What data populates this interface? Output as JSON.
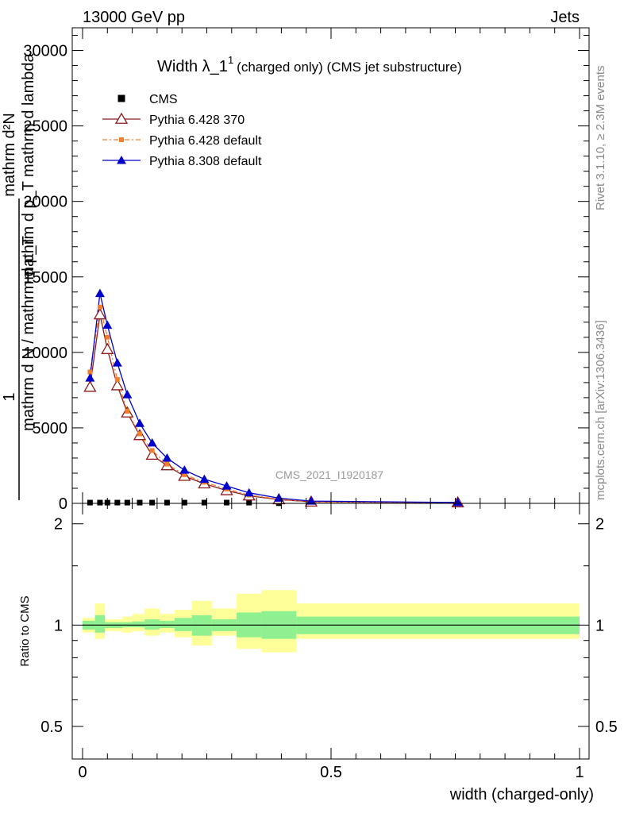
{
  "header": {
    "left": "13000 GeV pp",
    "right": "Jets"
  },
  "side_labels": {
    "rivet": "Rivet 3.1.10, ≥ 2.3M events",
    "mcplots": "mcplots.cern.ch [arXiv:1306.3436]"
  },
  "watermark": "CMS_2021_I1920187",
  "chart_data": [
    {
      "type": "line",
      "title_main": "Width λ_1",
      "title_sup": "1",
      "title_sub": "(charged only) (CMS jet substructure)",
      "ylabel_numerator": "1",
      "ylabel_denominator": "mathrm d N / mathrm d p_T",
      "ylabel_numerator2": "mathrm d²N",
      "ylabel_denominator2": "mathrm d p_T mathrm d lambda",
      "xlim": [
        0,
        1
      ],
      "ylim": [
        0,
        31500
      ],
      "yticks": [
        0,
        5000,
        10000,
        15000,
        20000,
        25000,
        30000
      ],
      "ytick_labels": [
        "0",
        "5000",
        "10000",
        "15000",
        "20000",
        "25000",
        "30000"
      ],
      "legend_position": "top-left",
      "series": [
        {
          "name": "CMS",
          "color": "#000000",
          "marker": "square",
          "x": [
            0.015,
            0.035,
            0.05,
            0.07,
            0.09,
            0.115,
            0.14,
            0.17,
            0.205,
            0.245,
            0.29,
            0.335,
            0.395,
            0.46,
            0.755
          ],
          "y": [
            50,
            50,
            50,
            50,
            50,
            50,
            50,
            50,
            50,
            50,
            50,
            50,
            10,
            10,
            10
          ]
        },
        {
          "name": "Pythia 6.428 370",
          "color": "#8b1a1a",
          "marker": "open-triangle",
          "x": [
            0.015,
            0.035,
            0.05,
            0.07,
            0.09,
            0.115,
            0.14,
            0.17,
            0.205,
            0.245,
            0.29,
            0.335,
            0.395,
            0.46,
            0.755
          ],
          "y": [
            7700,
            12500,
            10200,
            7800,
            6000,
            4500,
            3200,
            2500,
            1800,
            1300,
            850,
            500,
            250,
            100,
            50
          ]
        },
        {
          "name": "Pythia 6.428 default",
          "color": "#f08030",
          "marker": "filled-square",
          "x": [
            0.015,
            0.035,
            0.05,
            0.07,
            0.09,
            0.115,
            0.14,
            0.17,
            0.205,
            0.245,
            0.29,
            0.335,
            0.395,
            0.46,
            0.755
          ],
          "y": [
            8700,
            13000,
            11000,
            8200,
            6100,
            4600,
            3500,
            2600,
            1900,
            1400,
            950,
            550,
            280,
            110,
            50
          ]
        },
        {
          "name": "Pythia 8.308 default",
          "color": "#0000cc",
          "marker": "filled-triangle",
          "x": [
            0.015,
            0.035,
            0.05,
            0.07,
            0.09,
            0.115,
            0.14,
            0.17,
            0.205,
            0.245,
            0.29,
            0.335,
            0.395,
            0.46,
            0.755
          ],
          "y": [
            8300,
            13900,
            11800,
            9300,
            7200,
            5300,
            4000,
            3000,
            2200,
            1600,
            1150,
            700,
            350,
            150,
            60
          ]
        }
      ]
    },
    {
      "type": "area",
      "ylabel": "Ratio to CMS",
      "xlabel": "width (charged-only)",
      "xlim": [
        0,
        1
      ],
      "ylim": [
        0.4,
        2.3
      ],
      "log_y": true,
      "yticks": [
        0.5,
        1,
        2
      ],
      "ytick_labels": [
        "0.5",
        "1",
        "2"
      ],
      "xticks": [
        0,
        0.5,
        1
      ],
      "xtick_labels": [
        "0",
        "0.5",
        "1"
      ],
      "bins": [
        0,
        0.025,
        0.045,
        0.06,
        0.08,
        0.1,
        0.125,
        0.155,
        0.185,
        0.22,
        0.26,
        0.31,
        0.36,
        0.43,
        0.5,
        1.0
      ],
      "band_colors": {
        "inner": "#8ff08f",
        "outer": "#ffff99"
      },
      "inner_band": [
        [
          0.97,
          1.03
        ],
        [
          0.95,
          1.07
        ],
        [
          0.98,
          1.02
        ],
        [
          0.98,
          1.02
        ],
        [
          0.985,
          1.02
        ],
        [
          0.985,
          1.025
        ],
        [
          0.97,
          1.04
        ],
        [
          0.98,
          1.03
        ],
        [
          0.96,
          1.05
        ],
        [
          0.93,
          1.07
        ],
        [
          0.96,
          1.04
        ],
        [
          0.92,
          1.09
        ],
        [
          0.91,
          1.1
        ],
        [
          0.94,
          1.06
        ],
        [
          0.94,
          1.06
        ]
      ],
      "outer_band": [
        [
          0.95,
          1.05
        ],
        [
          0.91,
          1.16
        ],
        [
          0.96,
          1.04
        ],
        [
          0.96,
          1.04
        ],
        [
          0.95,
          1.06
        ],
        [
          0.96,
          1.08
        ],
        [
          0.93,
          1.12
        ],
        [
          0.95,
          1.08
        ],
        [
          0.92,
          1.11
        ],
        [
          0.87,
          1.18
        ],
        [
          0.93,
          1.12
        ],
        [
          0.85,
          1.24
        ],
        [
          0.83,
          1.27
        ],
        [
          0.91,
          1.16
        ],
        [
          0.91,
          1.16
        ]
      ],
      "reference_line": 1
    }
  ]
}
